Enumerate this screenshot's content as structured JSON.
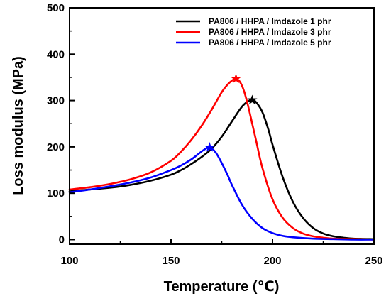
{
  "chart_data": {
    "type": "line",
    "title": "",
    "xlabel": "Temperature (℃)",
    "ylabel": "Loss modulus (MPa)",
    "xlim": [
      100,
      250
    ],
    "ylim": [
      -10,
      500
    ],
    "x_ticks": [
      100,
      150,
      200,
      250
    ],
    "y_ticks": [
      0,
      100,
      200,
      300,
      400,
      500
    ],
    "grid": false,
    "legend_position": "top-right",
    "series": [
      {
        "name": "PA806 / HHPA / Imdazole 1 phr",
        "color": "#000000",
        "peak": [
          190,
          301
        ],
        "x": [
          100,
          110,
          120,
          130,
          140,
          150,
          155,
          160,
          165,
          170,
          175,
          180,
          185,
          188,
          190,
          192,
          195,
          198,
          200,
          205,
          210,
          215,
          220,
          225,
          230,
          235,
          240,
          250
        ],
        "y": [
          104,
          108,
          112,
          118,
          127,
          140,
          150,
          163,
          178,
          196,
          222,
          255,
          287,
          298,
          301,
          296,
          275,
          237,
          205,
          135,
          82,
          47,
          25,
          13,
          7,
          4,
          2,
          1
        ]
      },
      {
        "name": "PA806 / HHPA / Imdazole 3 phr",
        "color": "#ff0000",
        "peak": [
          182,
          347
        ],
        "x": [
          100,
          110,
          120,
          130,
          140,
          150,
          155,
          160,
          165,
          170,
          175,
          178,
          180,
          182,
          184,
          186,
          188,
          190,
          192,
          195,
          200,
          205,
          210,
          215,
          220,
          225,
          230,
          240,
          250
        ],
        "y": [
          108,
          113,
          120,
          130,
          145,
          170,
          190,
          215,
          245,
          280,
          318,
          335,
          343,
          347,
          340,
          320,
          288,
          250,
          212,
          155,
          87,
          47,
          25,
          13,
          7,
          4,
          2,
          1,
          0
        ]
      },
      {
        "name": "PA806 / HHPA / Imdazole 5 phr",
        "color": "#0000ff",
        "peak": [
          169,
          199
        ],
        "x": [
          100,
          110,
          120,
          130,
          140,
          150,
          155,
          160,
          163,
          166,
          169,
          172,
          175,
          178,
          180,
          185,
          190,
          195,
          200,
          205,
          210,
          220,
          230,
          240,
          250
        ],
        "y": [
          102,
          108,
          115,
          123,
          134,
          150,
          160,
          173,
          183,
          193,
          199,
          188,
          165,
          138,
          118,
          75,
          45,
          25,
          14,
          8,
          5,
          2,
          1,
          0,
          0
        ]
      }
    ]
  }
}
